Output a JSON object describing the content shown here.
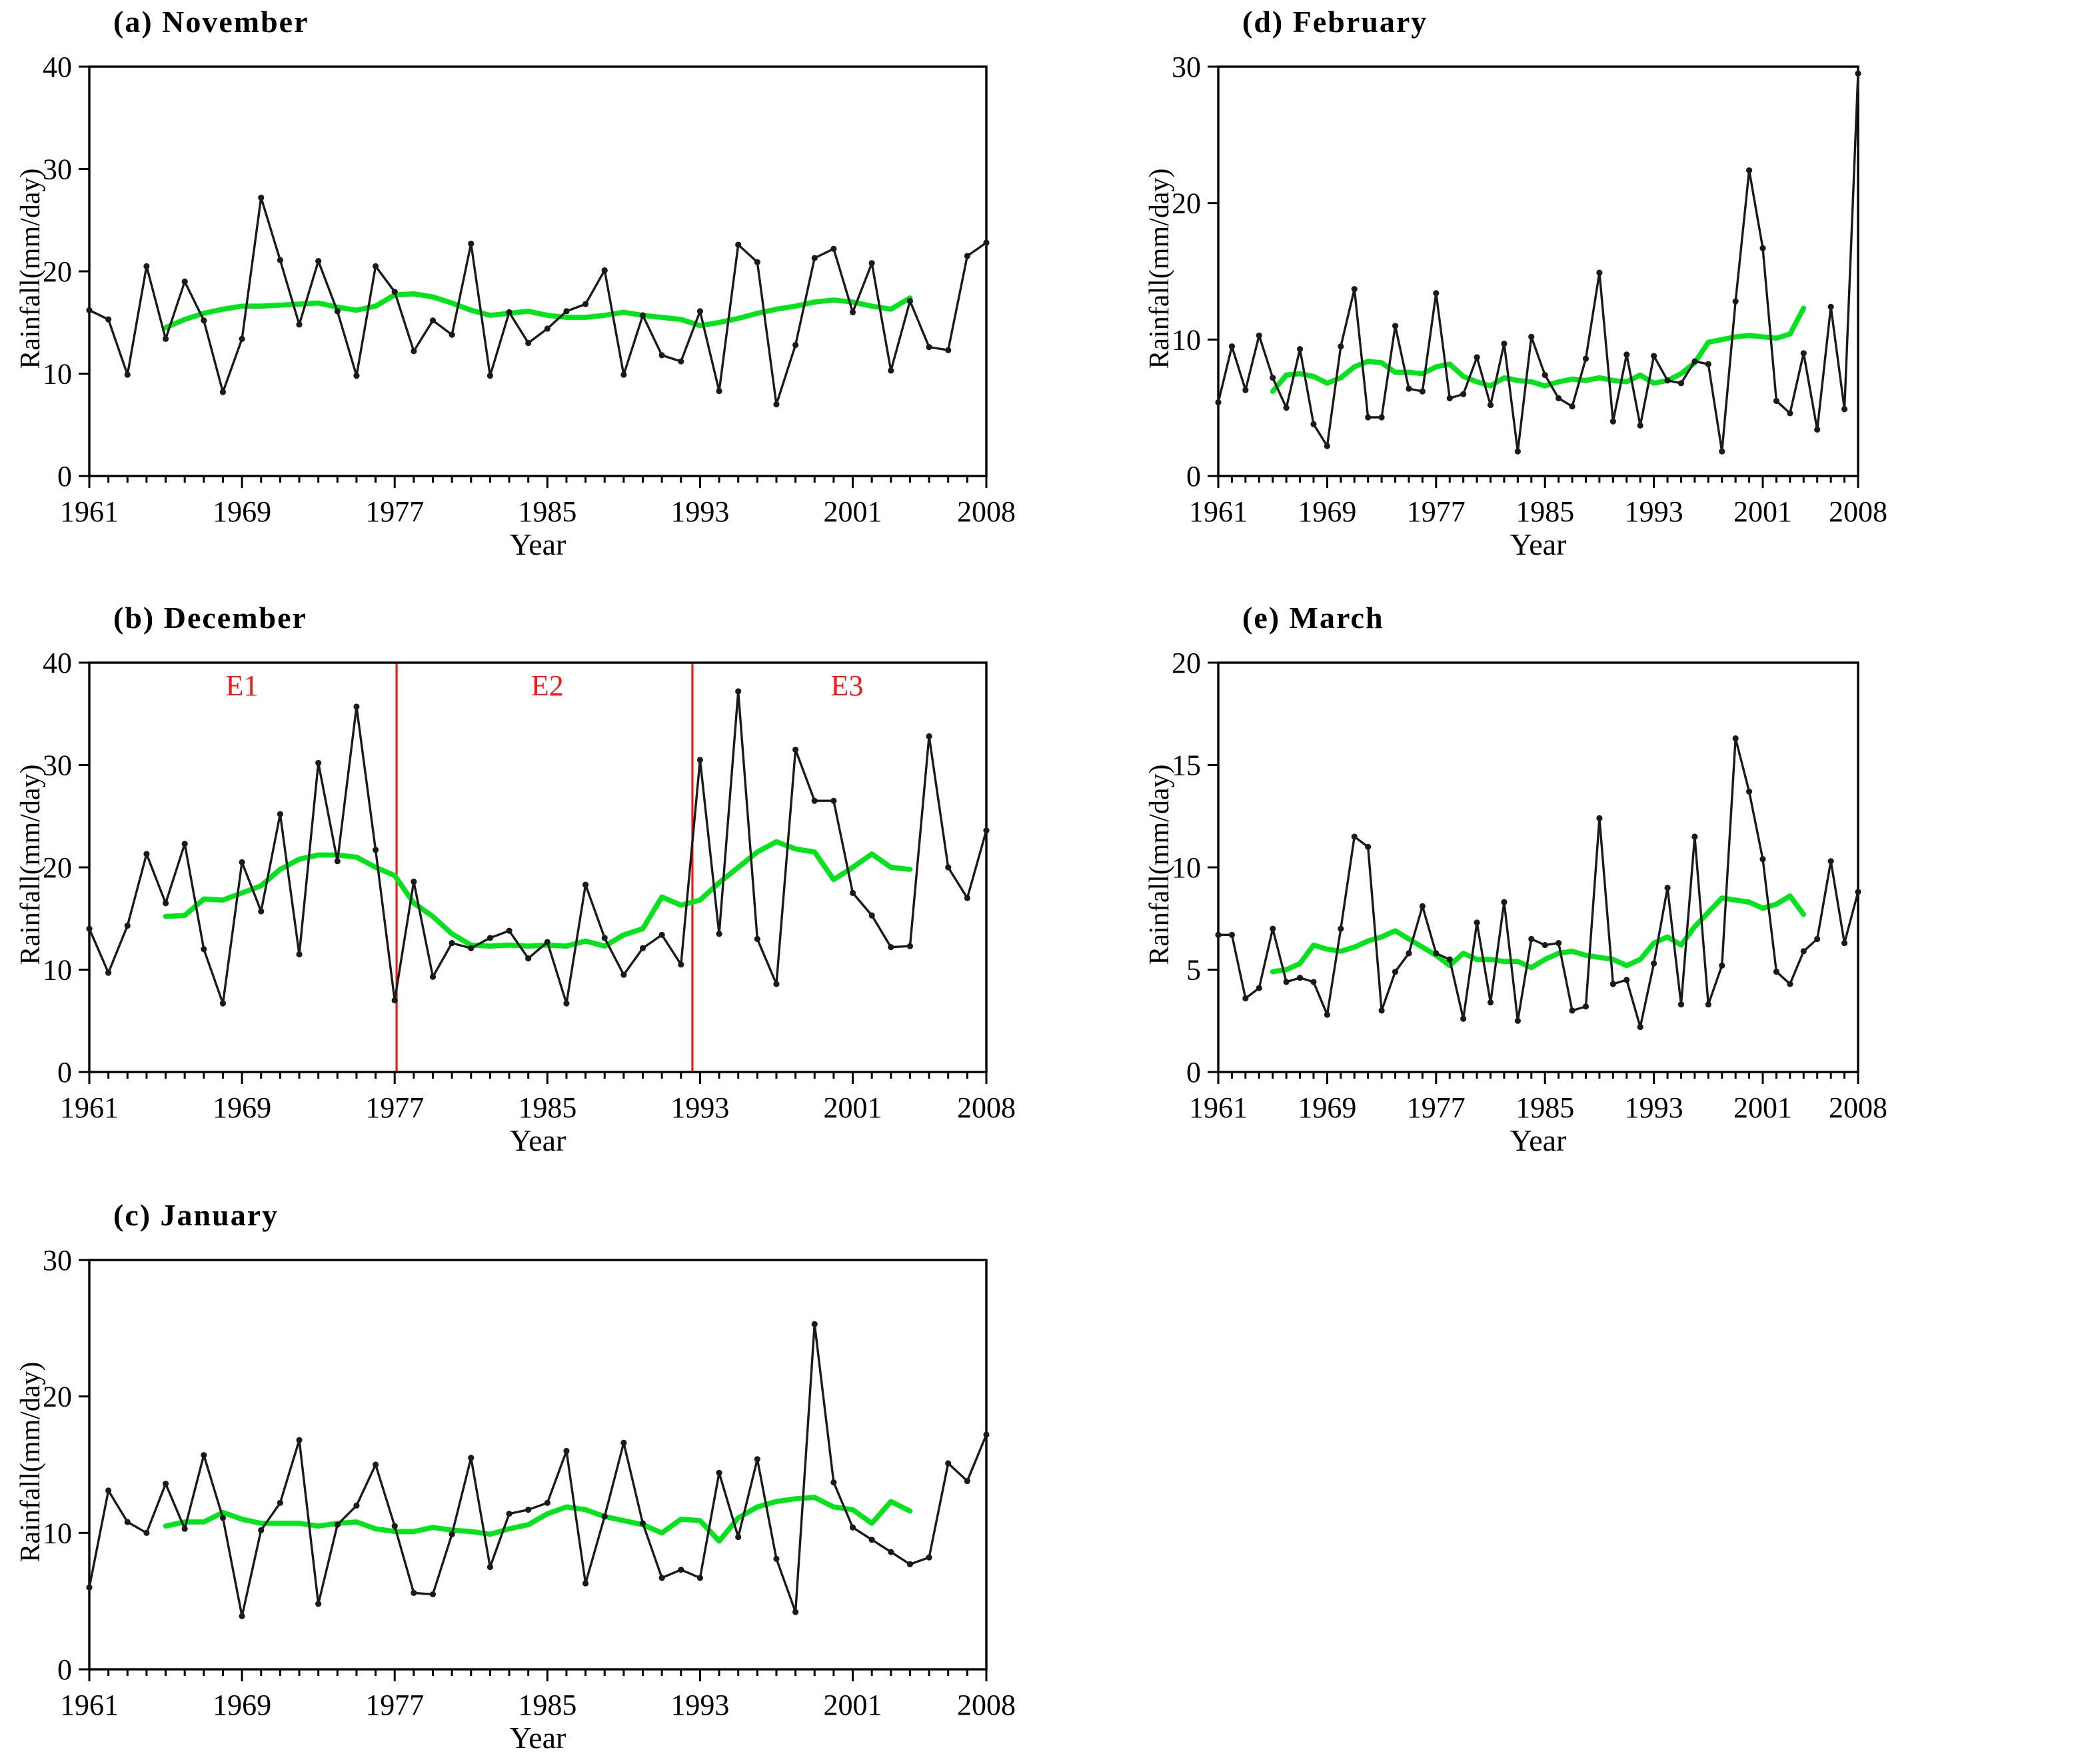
{
  "figure": {
    "xlim": [
      1961,
      2008
    ],
    "year_ticks_labeled": [
      1961,
      1969,
      1977,
      1985,
      1993,
      2001,
      2008
    ],
    "colors": {
      "series": "#1a1a1a",
      "running_mean": "#00e519",
      "epoch": "#ff1414",
      "axis": "#000000"
    }
  },
  "chart_data": [
    {
      "id": "a",
      "type": "line",
      "title": "(a) November",
      "xlabel": "Year",
      "ylabel": "Rainfall(mm/day)",
      "ylim": [
        0,
        40
      ],
      "yticks": [
        0,
        10,
        20,
        30,
        40
      ],
      "start_year": 1961,
      "values": [
        16.2,
        15.3,
        9.9,
        20.5,
        13.4,
        19.0,
        15.2,
        8.2,
        13.4,
        27.2,
        21.1,
        14.8,
        21.0,
        16.1,
        9.8,
        20.5,
        18.0,
        12.2,
        15.2,
        13.8,
        22.7,
        9.8,
        16.0,
        13.0,
        14.4,
        16.1,
        16.8,
        20.1,
        9.9,
        15.7,
        11.8,
        11.2,
        16.1,
        8.3,
        22.6,
        20.9,
        7.0,
        12.8,
        21.3,
        22.2,
        16.0,
        20.8,
        10.3,
        17.1,
        12.6,
        12.3,
        21.5,
        22.8
      ],
      "running_mean": {
        "start_year": 1965,
        "end_year": 2004,
        "values": [
          14.5,
          15.3,
          15.9,
          16.3,
          16.6,
          16.6,
          16.7,
          16.8,
          16.9,
          16.5,
          16.2,
          16.6,
          17.7,
          17.8,
          17.5,
          16.9,
          16.2,
          15.7,
          15.9,
          16.1,
          15.7,
          15.5,
          15.5,
          15.7,
          16.0,
          15.7,
          15.5,
          15.3,
          14.7,
          15.0,
          15.4,
          15.9,
          16.3,
          16.6,
          17.0,
          17.2,
          17.0,
          16.6,
          16.3,
          17.4
        ]
      }
    },
    {
      "id": "b",
      "type": "line",
      "title": "(b) December",
      "xlabel": "Year",
      "ylabel": "Rainfall(mm/day)",
      "ylim": [
        0,
        40
      ],
      "yticks": [
        0,
        10,
        20,
        30,
        40
      ],
      "start_year": 1961,
      "values": [
        14.0,
        9.7,
        14.3,
        21.3,
        16.5,
        22.3,
        12.0,
        6.7,
        20.5,
        15.7,
        25.2,
        11.5,
        30.2,
        20.6,
        35.7,
        21.7,
        7.0,
        18.6,
        9.3,
        12.6,
        12.1,
        13.1,
        13.8,
        11.1,
        12.7,
        6.7,
        18.3,
        13.1,
        9.5,
        12.1,
        13.4,
        10.5,
        30.5,
        13.5,
        37.2,
        13.0,
        8.6,
        31.5,
        26.5,
        26.5,
        17.5,
        15.3,
        12.2,
        12.3,
        32.8,
        20.0,
        17.0,
        23.6
      ],
      "running_mean": {
        "start_year": 1965,
        "end_year": 2004,
        "values": [
          15.2,
          15.3,
          16.9,
          16.8,
          17.5,
          18.2,
          19.8,
          20.8,
          21.2,
          21.2,
          21.0,
          20.0,
          19.2,
          16.5,
          15.2,
          13.5,
          12.4,
          12.3,
          12.4,
          12.3,
          12.4,
          12.3,
          12.8,
          12.3,
          13.4,
          14.0,
          17.1,
          16.3,
          16.8,
          18.5,
          20.0,
          21.5,
          22.5,
          21.8,
          21.5,
          18.8,
          20.0,
          21.3,
          20.0,
          19.8
        ]
      },
      "epoch_lines": [
        {
          "year": 1977.1
        },
        {
          "year": 1992.6
        }
      ],
      "epoch_labels": [
        {
          "text": "E1",
          "year": 1969.0
        },
        {
          "text": "E2",
          "year": 1985.0
        },
        {
          "text": "E3",
          "year": 2000.7
        }
      ],
      "epoch_label_value": 36.8
    },
    {
      "id": "c",
      "type": "line",
      "title": "(c) January",
      "xlabel": "Year",
      "ylabel": "Rainfall(mm/day)",
      "ylim": [
        0,
        30
      ],
      "yticks": [
        0,
        10,
        20,
        30
      ],
      "start_year": 1961,
      "values": [
        6.0,
        13.1,
        10.8,
        10.0,
        13.6,
        10.3,
        15.7,
        11.1,
        3.9,
        10.2,
        12.2,
        16.8,
        4.8,
        10.6,
        12.0,
        15.0,
        10.5,
        5.6,
        5.5,
        9.9,
        15.5,
        7.5,
        11.4,
        11.7,
        12.2,
        16.0,
        6.3,
        11.2,
        16.6,
        10.7,
        6.7,
        7.3,
        6.7,
        14.4,
        9.7,
        15.4,
        8.1,
        4.2,
        25.3,
        13.7,
        10.4,
        9.5,
        8.6,
        7.7,
        8.2,
        15.1,
        13.8,
        17.2
      ],
      "running_mean": {
        "start_year": 1965,
        "end_year": 2004,
        "values": [
          10.5,
          10.8,
          10.8,
          11.5,
          11.0,
          10.7,
          10.7,
          10.7,
          10.5,
          10.7,
          10.8,
          10.3,
          10.1,
          10.1,
          10.4,
          10.2,
          10.1,
          9.9,
          10.3,
          10.6,
          11.4,
          11.9,
          11.7,
          11.2,
          10.9,
          10.6,
          10.0,
          11.0,
          10.9,
          9.4,
          11.1,
          11.9,
          12.3,
          12.5,
          12.6,
          11.9,
          11.7,
          10.7,
          12.3,
          11.6
        ]
      }
    },
    {
      "id": "d",
      "type": "line",
      "title": "(d) February",
      "xlabel": "Year",
      "ylabel": "Rainfall(mm/day)",
      "ylim": [
        0,
        30
      ],
      "yticks": [
        0,
        10,
        20,
        30
      ],
      "start_year": 1961,
      "values": [
        5.4,
        9.5,
        6.3,
        10.3,
        7.2,
        5.0,
        9.3,
        3.8,
        2.2,
        9.5,
        13.7,
        4.3,
        4.3,
        11.0,
        6.4,
        6.2,
        13.4,
        5.7,
        6.0,
        8.7,
        5.2,
        9.7,
        1.8,
        10.2,
        7.4,
        5.7,
        5.1,
        8.6,
        14.9,
        4.0,
        8.9,
        3.7,
        8.8,
        7.0,
        6.8,
        8.4,
        8.2,
        1.8,
        12.8,
        22.4,
        16.7,
        5.5,
        4.6,
        9.0,
        3.4,
        12.4,
        4.9,
        29.5
      ],
      "running_mean": {
        "start_year": 1965,
        "end_year": 2004,
        "values": [
          6.2,
          7.4,
          7.5,
          7.3,
          6.8,
          7.2,
          8.0,
          8.4,
          8.3,
          7.6,
          7.6,
          7.5,
          8.0,
          8.2,
          7.3,
          6.9,
          6.6,
          7.2,
          7.0,
          6.9,
          6.6,
          6.9,
          7.1,
          7.0,
          7.2,
          7.0,
          6.9,
          7.4,
          6.8,
          7.0,
          7.5,
          8.3,
          9.8,
          10.0,
          10.2,
          10.3,
          10.2,
          10.1,
          10.4,
          12.3
        ]
      }
    },
    {
      "id": "e",
      "type": "line",
      "title": "(e) March",
      "xlabel": "Year",
      "ylabel": "Rainfall(mm/day)",
      "ylim": [
        0,
        20
      ],
      "yticks": [
        0,
        5,
        10,
        15,
        20
      ],
      "start_year": 1961,
      "values": [
        6.7,
        6.7,
        3.6,
        4.1,
        7.0,
        4.4,
        4.6,
        4.4,
        2.8,
        7.0,
        11.5,
        11.0,
        3.0,
        4.9,
        5.8,
        8.1,
        5.8,
        5.5,
        2.6,
        7.3,
        3.4,
        8.3,
        2.5,
        6.5,
        6.2,
        6.3,
        3.0,
        3.2,
        12.4,
        4.3,
        4.5,
        2.2,
        5.3,
        9.0,
        3.3,
        11.5,
        3.3,
        5.2,
        16.3,
        13.7,
        10.4,
        4.9,
        4.3,
        5.9,
        6.5,
        10.3,
        6.3,
        8.8
      ],
      "running_mean": {
        "start_year": 1965,
        "end_year": 2004,
        "values": [
          4.9,
          5.0,
          5.3,
          6.2,
          6.0,
          5.9,
          6.1,
          6.4,
          6.6,
          6.9,
          6.5,
          6.1,
          5.7,
          5.2,
          5.8,
          5.5,
          5.5,
          5.4,
          5.4,
          5.1,
          5.5,
          5.8,
          5.9,
          5.7,
          5.6,
          5.5,
          5.2,
          5.5,
          6.3,
          6.6,
          6.2,
          7.1,
          7.8,
          8.5,
          8.4,
          8.3,
          8.0,
          8.2,
          8.6,
          7.7
        ]
      }
    }
  ]
}
